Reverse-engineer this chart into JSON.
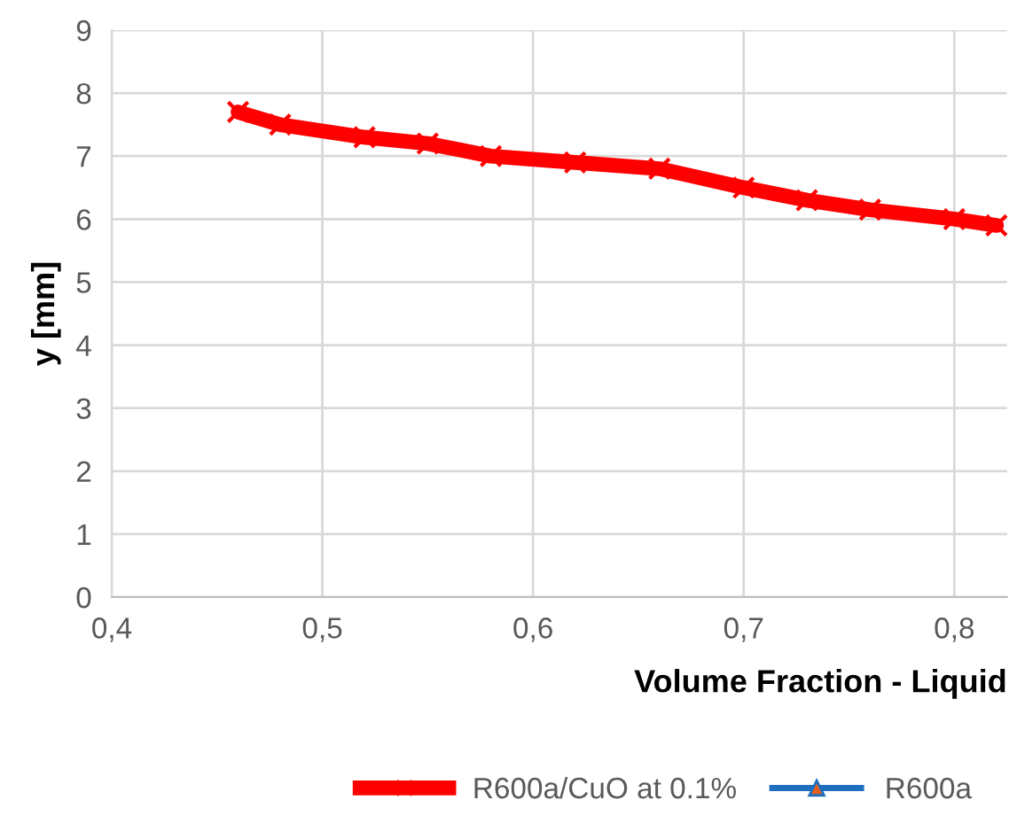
{
  "chart_data": {
    "type": "line",
    "xlabel": "Volume Fraction - Liquid",
    "ylabel": "y [mm]",
    "x": [
      0.46,
      0.48,
      0.52,
      0.55,
      0.58,
      0.62,
      0.66,
      0.7,
      0.73,
      0.76,
      0.8,
      0.82
    ],
    "series": [
      {
        "name": "R600a/CuO at 0.1%",
        "color": "#ff0000",
        "marker": "cross",
        "values": [
          7.7,
          7.5,
          7.3,
          7.2,
          7.0,
          6.9,
          6.8,
          6.5,
          6.3,
          6.15,
          6.0,
          5.9
        ]
      },
      {
        "name": "R600a",
        "color": "#1f6fc0",
        "marker": "triangle",
        "values": [
          null,
          null,
          null,
          null,
          null,
          null,
          null,
          null,
          null,
          null,
          null,
          null
        ]
      }
    ],
    "xlim": [
      0.4,
      0.825
    ],
    "ylim": [
      0,
      9
    ],
    "xticks": [
      {
        "value": 0.4,
        "label": "0,4"
      },
      {
        "value": 0.5,
        "label": "0,5"
      },
      {
        "value": 0.6,
        "label": "0,6"
      },
      {
        "value": 0.7,
        "label": "0,7"
      },
      {
        "value": 0.8,
        "label": "0,8"
      }
    ],
    "yticks": [
      0,
      1,
      2,
      3,
      4,
      5,
      6,
      7,
      8,
      9
    ],
    "grid": true,
    "legend": "bottom",
    "line_style": "solid"
  }
}
